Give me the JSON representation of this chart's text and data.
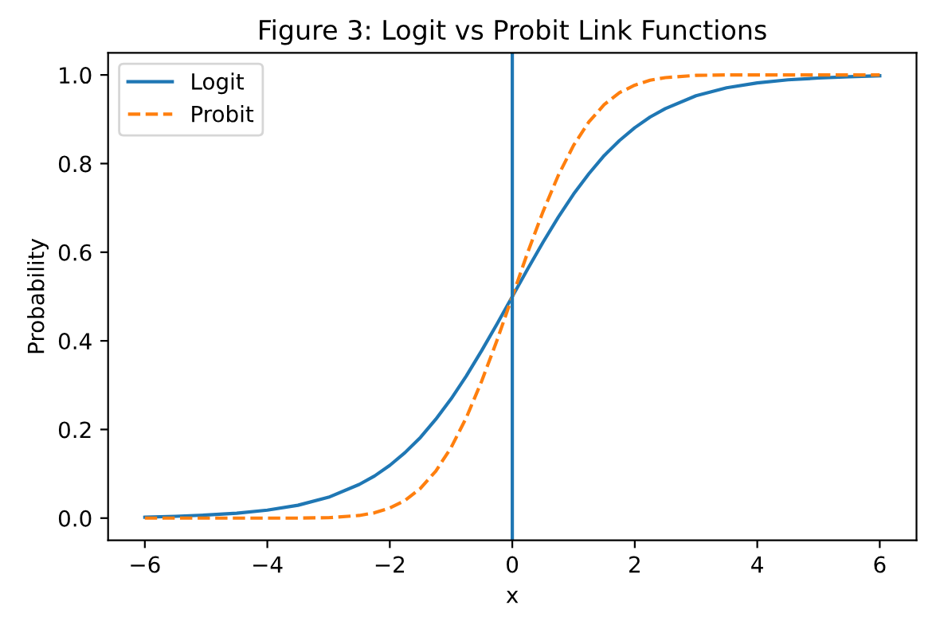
{
  "chart_data": {
    "type": "line",
    "title": "Figure 3: Logit vs Probit Link Functions",
    "xlabel": "x",
    "ylabel": "Probability",
    "x": [
      -6,
      -5.5,
      -5,
      -4.5,
      -4,
      -3.5,
      -3,
      -2.5,
      -2.25,
      -2,
      -1.75,
      -1.5,
      -1.25,
      -1,
      -0.75,
      -0.5,
      -0.25,
      0,
      0.25,
      0.5,
      0.75,
      1,
      1.25,
      1.5,
      1.75,
      2,
      2.25,
      2.5,
      3,
      3.5,
      4,
      4.5,
      5,
      5.5,
      6
    ],
    "series": [
      {
        "name": "Logit",
        "color": "#1f77b4",
        "line_style": "solid",
        "values": [
          0.002,
          0.004,
          0.007,
          0.011,
          0.018,
          0.029,
          0.047,
          0.076,
          0.095,
          0.119,
          0.148,
          0.182,
          0.223,
          0.269,
          0.321,
          0.378,
          0.438,
          0.5,
          0.562,
          0.622,
          0.679,
          0.731,
          0.777,
          0.818,
          0.852,
          0.881,
          0.905,
          0.924,
          0.953,
          0.971,
          0.982,
          0.989,
          0.993,
          0.996,
          0.998
        ]
      },
      {
        "name": "Probit",
        "color": "#ff7f0e",
        "line_style": "dashed",
        "values": [
          0,
          0,
          0,
          0,
          0,
          0,
          0.001,
          0.006,
          0.012,
          0.023,
          0.04,
          0.067,
          0.106,
          0.159,
          0.227,
          0.309,
          0.401,
          0.5,
          0.599,
          0.691,
          0.773,
          0.841,
          0.894,
          0.933,
          0.96,
          0.977,
          0.988,
          0.994,
          0.999,
          1,
          1,
          1,
          1,
          1,
          1
        ]
      }
    ],
    "ref_lines": [
      {
        "axis": "x",
        "value": 0,
        "color": "#1f77b4",
        "line_style": "solid"
      }
    ],
    "xlim": [
      -6.6,
      6.6
    ],
    "ylim": [
      -0.05,
      1.05
    ],
    "xticks": [
      {
        "value": -6,
        "label": "−6"
      },
      {
        "value": -4,
        "label": "−4"
      },
      {
        "value": -2,
        "label": "−2"
      },
      0,
      2,
      4,
      6
    ],
    "yticks": [
      {
        "value": 0,
        "label": "0.0"
      },
      {
        "value": 0.2,
        "label": "0.2"
      },
      {
        "value": 0.4,
        "label": "0.4"
      },
      {
        "value": 0.6,
        "label": "0.6"
      },
      {
        "value": 0.8,
        "label": "0.8"
      },
      {
        "value": 1,
        "label": "1.0"
      }
    ],
    "grid": false,
    "legend": "top left",
    "marker": "none"
  }
}
